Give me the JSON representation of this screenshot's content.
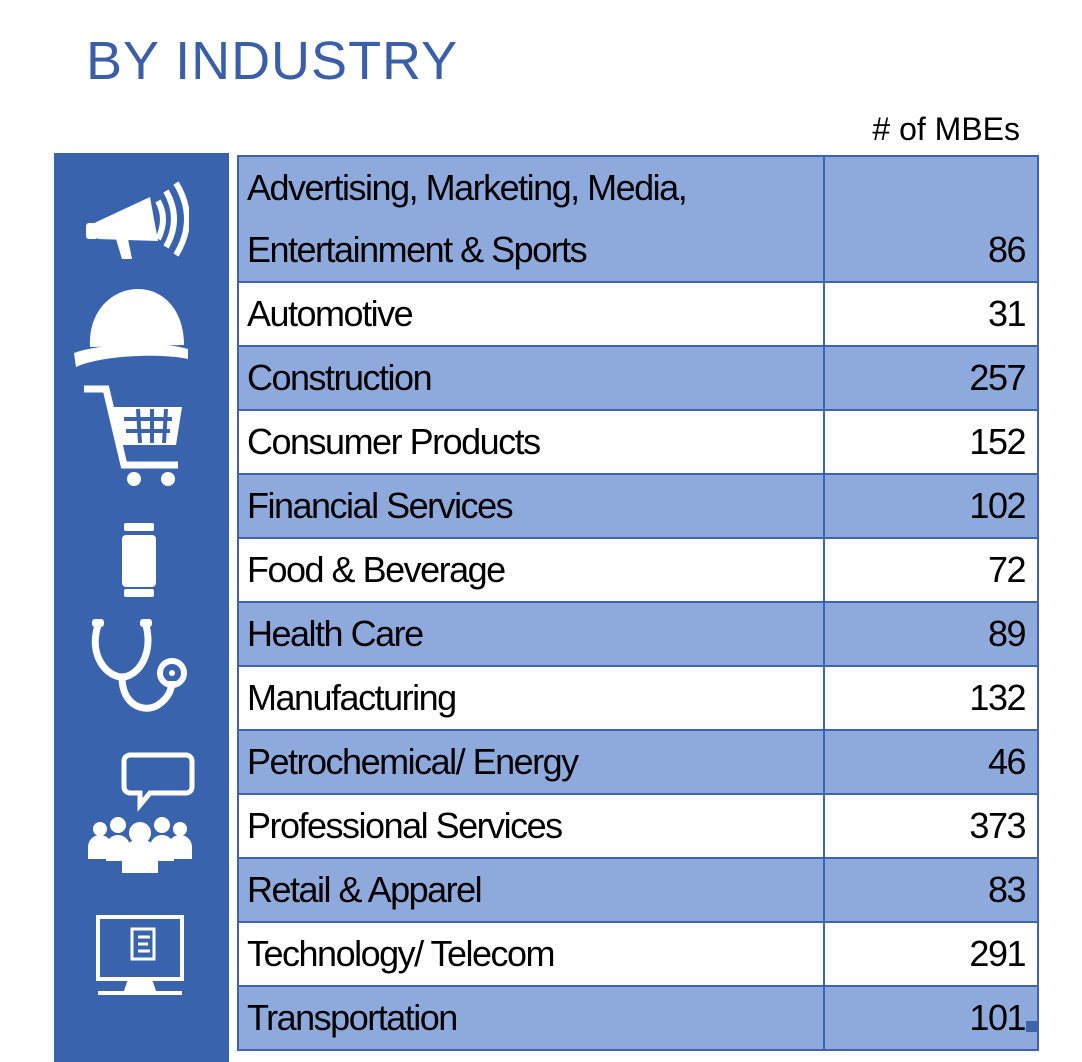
{
  "title": "BY INDUSTRY",
  "column_header": "# of MBEs",
  "icons": [
    "megaphone-icon",
    "hardhat-icon",
    "shopping-cart-icon",
    "beverage-can-icon",
    "stethoscope-icon",
    "people-chat-icon",
    "computer-monitor-icon"
  ],
  "colors": {
    "title": "#3a5ea8",
    "sidebar": "#3a63ae",
    "row_shade": "#8eaadc",
    "border": "#3e64ad"
  },
  "rows": [
    {
      "name_line1": "Advertising, Marketing, Media,",
      "name_line2": "Entertainment & Sports",
      "value": "86"
    },
    {
      "name": "Automotive",
      "value": "31"
    },
    {
      "name": "Construction",
      "value": "257"
    },
    {
      "name": "Consumer Products",
      "value": "152"
    },
    {
      "name": "Financial Services",
      "value": "102"
    },
    {
      "name": "Food & Beverage",
      "value": "72"
    },
    {
      "name": "Health Care",
      "value": "89"
    },
    {
      "name": "Manufacturing",
      "value": "132"
    },
    {
      "name": "Petrochemical/ Energy",
      "value": "46"
    },
    {
      "name": "Professional Services",
      "value": "373"
    },
    {
      "name": "Retail & Apparel",
      "value": "83"
    },
    {
      "name": "Technology/ Telecom",
      "value": "291"
    },
    {
      "name": "Transportation",
      "value": "101"
    }
  ]
}
